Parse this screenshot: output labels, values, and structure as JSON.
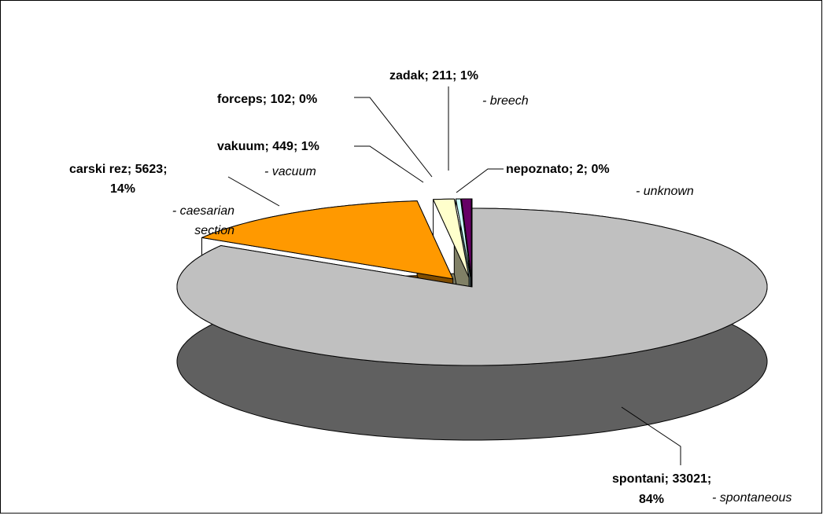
{
  "chart_data": {
    "type": "pie3d",
    "categories": [
      "spontani",
      "carski rez",
      "vakuum",
      "forceps",
      "zadak",
      "nepoznato"
    ],
    "values": [
      33021,
      5623,
      449,
      102,
      211,
      2
    ],
    "value_labels": [
      [
        "spontani; 33021;",
        "84%"
      ],
      [
        "carski rez; 5623;",
        "14%"
      ],
      [
        "vakuum; 449; 1%"
      ],
      [
        "forceps; 102; 0%"
      ],
      [
        "zadak; 211; 1%"
      ],
      [
        "nepoznato; 2; 0%"
      ]
    ],
    "translations": [
      [
        "- spontaneous"
      ],
      [
        "- caesarian",
        "section"
      ],
      [
        "- vacuum"
      ],
      null,
      [
        "- breech"
      ],
      [
        "- unknown"
      ]
    ],
    "colors": [
      "#c0c0c0",
      "#ff9900",
      "#ffffcc",
      "#ccffff",
      "#660066",
      "#ffffff"
    ]
  }
}
